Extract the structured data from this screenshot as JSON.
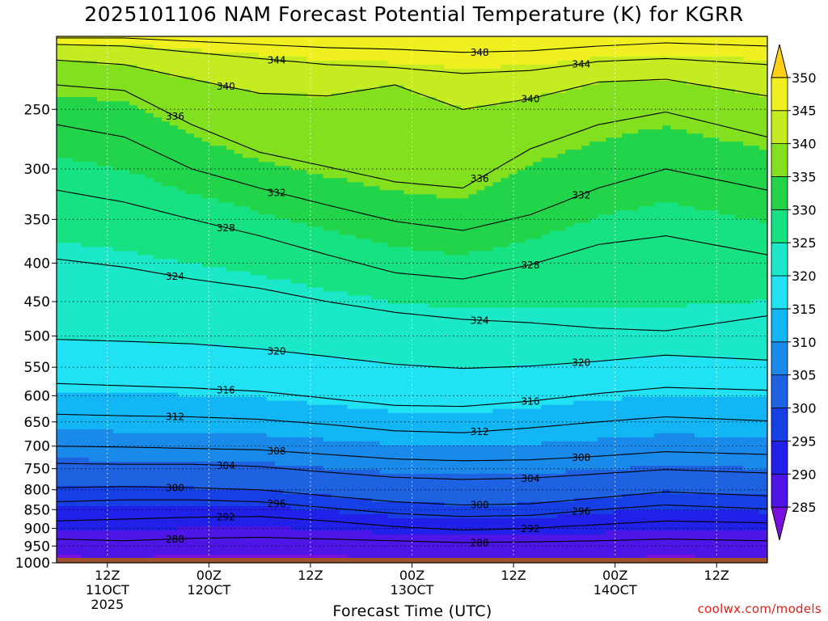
{
  "title": "2025101106 NAM Forecast Potential Temperature (K) for KGRR",
  "credit": "coolwx.com/models",
  "chart_data": {
    "type": "heatmap",
    "title": "2025101106 NAM Forecast Potential Temperature (K) for KGRR",
    "xlabel": "Forecast Time (UTC)",
    "ylabel": "",
    "forecast_hours": [
      0,
      84
    ],
    "xlim": [
      0,
      84
    ],
    "ylim": [
      1000,
      200
    ],
    "y_scale": "log-pressure",
    "y_ticks": [
      250,
      300,
      350,
      400,
      450,
      500,
      550,
      600,
      650,
      700,
      750,
      800,
      850,
      900,
      950,
      1000
    ],
    "x_ticks": [
      {
        "hour": 6,
        "lines": [
          "12Z",
          "11OCT",
          "2025"
        ]
      },
      {
        "hour": 18,
        "lines": [
          "00Z",
          "12OCT"
        ]
      },
      {
        "hour": 30,
        "lines": [
          "12Z"
        ]
      },
      {
        "hour": 42,
        "lines": [
          "00Z",
          "13OCT"
        ]
      },
      {
        "hour": 54,
        "lines": [
          "12Z"
        ]
      },
      {
        "hour": 66,
        "lines": [
          "00Z",
          "14OCT"
        ]
      },
      {
        "hour": 78,
        "lines": [
          "12Z"
        ]
      }
    ],
    "colorbar": {
      "levels": [
        285,
        290,
        295,
        300,
        305,
        310,
        315,
        320,
        325,
        330,
        335,
        340,
        345,
        350
      ],
      "colors": [
        "#7a10e0",
        "#4d16e6",
        "#2020e8",
        "#1640e6",
        "#1e62e2",
        "#1a8aea",
        "#12b6f4",
        "#20e2f2",
        "#1ae8c8",
        "#16e282",
        "#22d44a",
        "#82e01e",
        "#c4ec20",
        "#f0f020",
        "#ffd018"
      ]
    },
    "contour_levels": [
      288,
      292,
      296,
      300,
      304,
      308,
      312,
      316,
      320,
      324,
      328,
      332,
      336,
      340,
      344,
      348
    ],
    "isentropes": [
      {
        "theta": 288,
        "pressure": [
          930,
          935,
          928,
          925,
          930,
          935,
          940,
          938,
          935,
          930,
          935
        ]
      },
      {
        "theta": 292,
        "pressure": [
          880,
          875,
          870,
          868,
          880,
          895,
          905,
          900,
          890,
          880,
          885
        ]
      },
      {
        "theta": 296,
        "pressure": [
          830,
          825,
          825,
          830,
          845,
          860,
          868,
          865,
          850,
          838,
          848
        ]
      },
      {
        "theta": 300,
        "pressure": [
          795,
          792,
          795,
          800,
          815,
          830,
          838,
          835,
          820,
          805,
          815
        ]
      },
      {
        "theta": 304,
        "pressure": [
          738,
          740,
          740,
          745,
          758,
          770,
          775,
          772,
          762,
          752,
          760
        ]
      },
      {
        "theta": 308,
        "pressure": [
          700,
          702,
          705,
          708,
          718,
          728,
          732,
          730,
          722,
          712,
          718
        ]
      },
      {
        "theta": 312,
        "pressure": [
          635,
          638,
          640,
          645,
          655,
          668,
          672,
          662,
          650,
          640,
          648
        ]
      },
      {
        "theta": 316,
        "pressure": [
          578,
          582,
          586,
          592,
          605,
          618,
          620,
          610,
          596,
          585,
          590
        ]
      },
      {
        "theta": 320,
        "pressure": [
          505,
          508,
          512,
          520,
          532,
          545,
          552,
          548,
          540,
          530,
          538
        ]
      },
      {
        "theta": 324,
        "pressure": [
          395,
          405,
          420,
          432,
          450,
          465,
          475,
          480,
          488,
          492,
          470
        ]
      },
      {
        "theta": 328,
        "pressure": [
          320,
          332,
          350,
          368,
          390,
          412,
          420,
          402,
          378,
          368,
          390
        ]
      },
      {
        "theta": 332,
        "pressure": [
          262,
          272,
          300,
          318,
          335,
          352,
          362,
          345,
          318,
          300,
          320
        ]
      },
      {
        "theta": 336,
        "pressure": [
          232,
          236,
          262,
          285,
          298,
          312,
          318,
          282,
          262,
          252,
          272
        ]
      },
      {
        "theta": 340,
        "pressure": [
          215,
          218,
          228,
          238,
          240,
          232,
          250,
          242,
          230,
          228,
          240
        ]
      },
      {
        "theta": 344,
        "pressure": [
          205,
          206,
          210,
          214,
          218,
          220,
          224,
          222,
          216,
          214,
          218
        ]
      },
      {
        "theta": 348,
        "pressure": [
          201,
          201,
          203,
          205,
          207,
          208,
          210,
          209,
          206,
          204,
          206
        ]
      }
    ],
    "isentrope_hours": [
      0,
      8,
      16,
      24,
      32,
      40,
      48,
      56,
      64,
      72,
      84
    ]
  }
}
